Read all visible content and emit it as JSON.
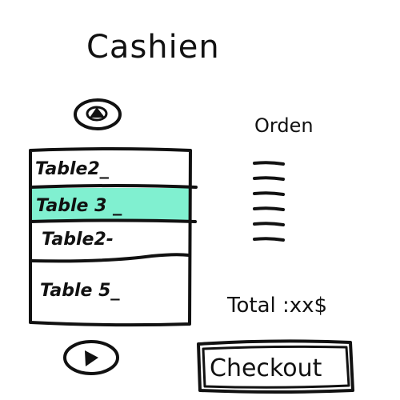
{
  "app": {
    "title": "Cashien"
  },
  "table_list": {
    "rows": [
      {
        "label": "Table2_",
        "selected": false
      },
      {
        "label": "Table 3 _",
        "selected": true
      },
      {
        "label": "Table2-",
        "selected": false
      },
      {
        "label": "Table 5_",
        "selected": false
      }
    ],
    "selected_color": "#80f0d0",
    "scroll_up_icon": "triangle-up-icon",
    "scroll_down_icon": "triangle-down-icon"
  },
  "order": {
    "title": "Orden",
    "line_count": 6,
    "total_label": "Total :xx$"
  },
  "checkout": {
    "label": "Checkout"
  }
}
